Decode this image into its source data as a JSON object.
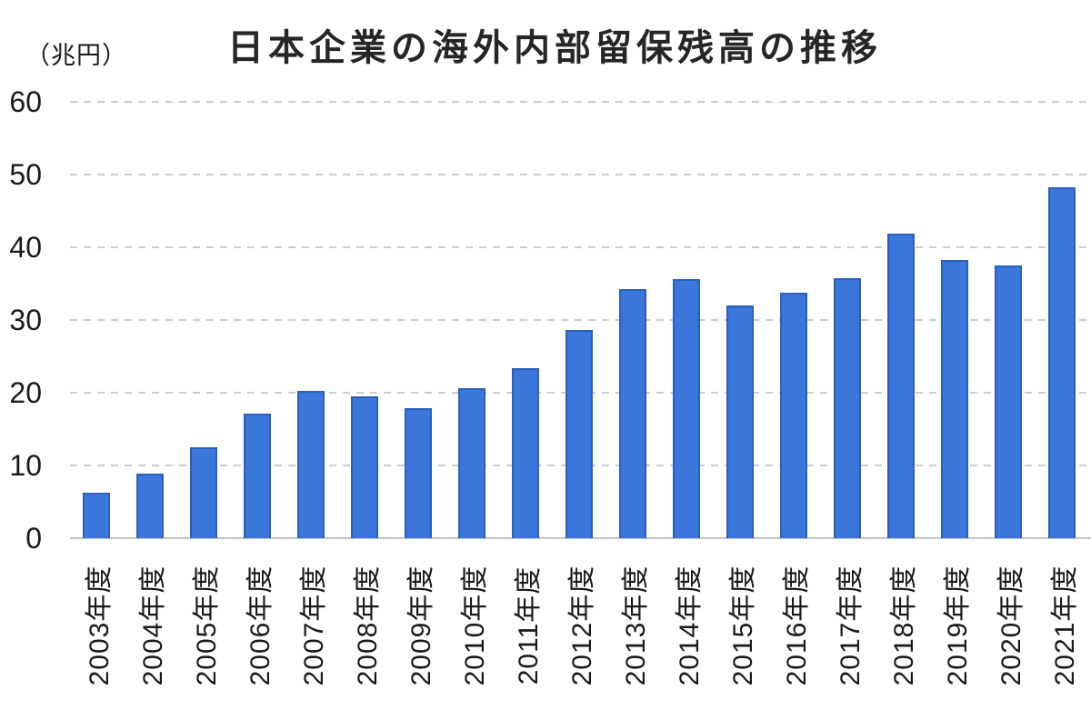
{
  "title": "日本企業の海外内部留保残高の推移",
  "unit_label": "（兆円）",
  "chart_data": {
    "type": "bar",
    "title": "日本企業の海外内部留保残高の推移",
    "ylabel": "（兆円）",
    "xlabel": "",
    "categories": [
      "2003年度",
      "2004年度",
      "2005年度",
      "2006年度",
      "2007年度",
      "2008年度",
      "2009年度",
      "2010年度",
      "2011年度",
      "2012年度",
      "2013年度",
      "2014年度",
      "2015年度",
      "2016年度",
      "2017年度",
      "2018年度",
      "2019年度",
      "2020年度",
      "2021年度"
    ],
    "values": [
      6.3,
      8.9,
      12.5,
      17.1,
      20.3,
      19.5,
      17.9,
      20.6,
      23.4,
      28.6,
      34.3,
      35.6,
      32.0,
      33.8,
      35.7,
      41.9,
      38.2,
      37.5,
      48.2
    ],
    "y_ticks": [
      0,
      10,
      20,
      30,
      40,
      50,
      60
    ],
    "ylim": [
      0,
      60
    ],
    "grid": "horizontal-dashed",
    "legend": "none",
    "bar_color": "#3B76DB",
    "bar_border_color": "#2A5FC0",
    "gridline_color": "#cdcdcd",
    "axis_line_color": "#c4c4c4",
    "text_color": "#1a1a1a",
    "title_color": "#262626"
  }
}
